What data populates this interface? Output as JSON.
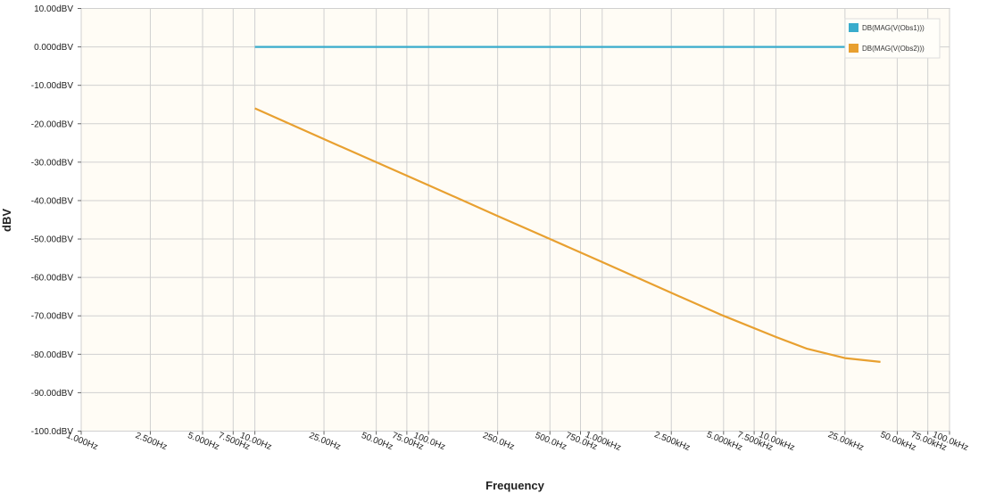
{
  "chart_data": {
    "type": "line",
    "xlabel": "Frequency",
    "ylabel": "dBV",
    "x_scale": "log",
    "xlim": [
      1,
      100000
    ],
    "ylim": [
      -100,
      10
    ],
    "grid": true,
    "legend_position": "top-right",
    "y_ticks": [
      10,
      0,
      -10,
      -20,
      -30,
      -40,
      -50,
      -60,
      -70,
      -80,
      -90,
      -100
    ],
    "y_tick_labels": [
      "10.00dBV",
      "0.000dBV",
      "-10.00dBV",
      "-20.00dBV",
      "-30.00dBV",
      "-40.00dBV",
      "-50.00dBV",
      "-60.00dBV",
      "-70.00dBV",
      "-80.00dBV",
      "-90.00dBV",
      "-100.0dBV"
    ],
    "x_ticks": [
      1,
      2.5,
      5,
      7.5,
      10,
      25,
      50,
      75,
      100,
      250,
      500,
      750,
      1000,
      2500,
      5000,
      7500,
      10000,
      25000,
      50000,
      75000,
      100000
    ],
    "x_tick_labels": [
      "1.000Hz",
      "2.500Hz",
      "5.000Hz",
      "7.500Hz",
      "10.00Hz",
      "25.00Hz",
      "50.00Hz",
      "75.00Hz",
      "100.0Hz",
      "250.0Hz",
      "500.0Hz",
      "750.0Hz",
      "1.000kHz",
      "2.500kHz",
      "5.000kHz",
      "7.500kHz",
      "10.00kHz",
      "25.00kHz",
      "50.00kHz",
      "75.00kHz",
      "100.0kHz"
    ],
    "series": [
      {
        "name": "DB(MAG(V(Obs1)))",
        "color": "#3aaccc",
        "x": [
          10,
          100,
          1000,
          10000,
          40000
        ],
        "y": [
          0,
          0,
          0,
          0,
          0
        ]
      },
      {
        "name": "DB(MAG(V(Obs2)))",
        "color": "#e8a030",
        "x": [
          10,
          25,
          50,
          100,
          250,
          500,
          1000,
          2500,
          5000,
          10000,
          15000,
          25000,
          40000
        ],
        "y": [
          -16,
          -24,
          -30,
          -36,
          -44,
          -50,
          -56,
          -64,
          -70,
          -75.5,
          -78.5,
          -81,
          -82
        ]
      }
    ]
  }
}
